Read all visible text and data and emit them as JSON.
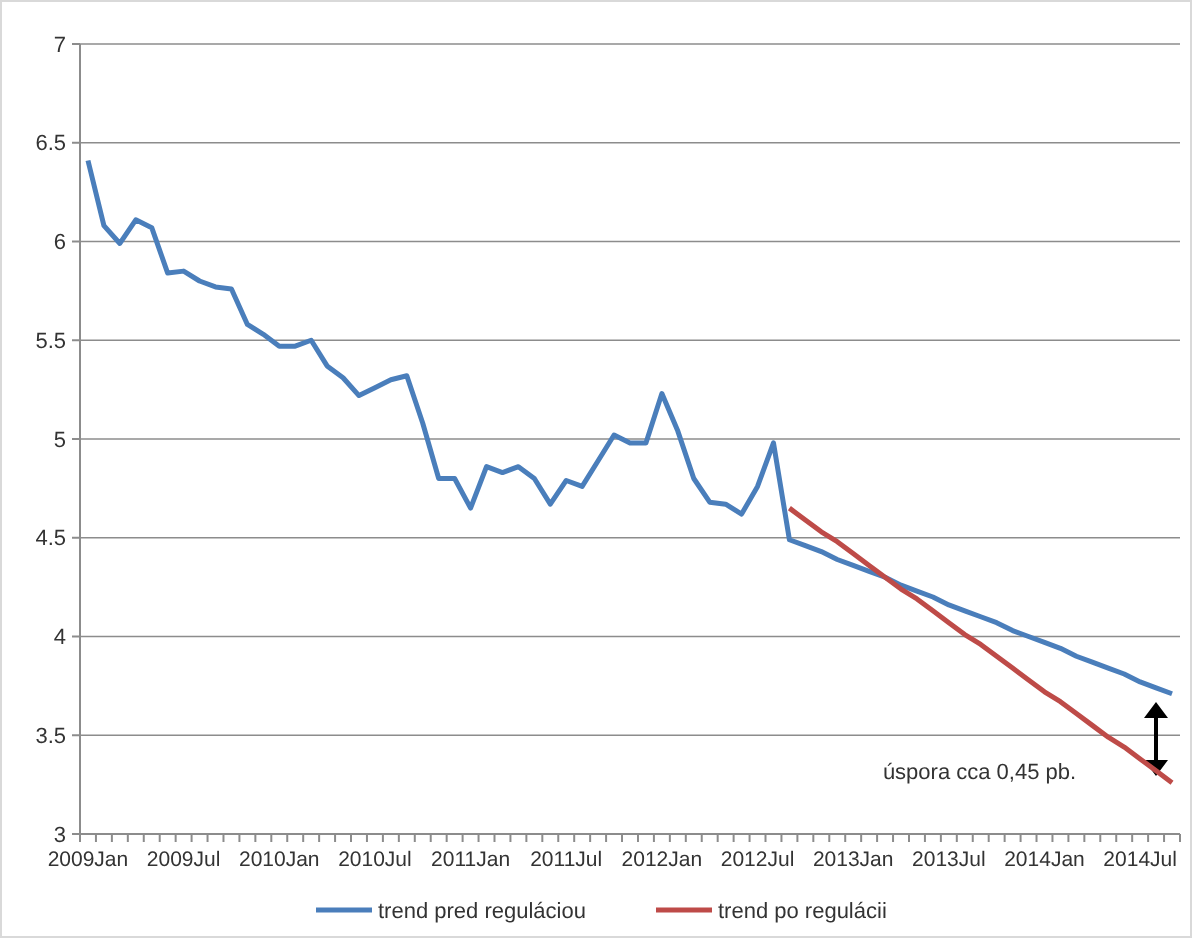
{
  "chart_data": {
    "type": "line",
    "categories": [
      "2009Jan",
      null,
      null,
      null,
      null,
      null,
      "2009Jul",
      null,
      null,
      null,
      null,
      null,
      "2010Jan",
      null,
      null,
      null,
      null,
      null,
      "2010Jul",
      null,
      null,
      null,
      null,
      null,
      "2011Jan",
      null,
      null,
      null,
      null,
      null,
      "2011Jul",
      null,
      null,
      null,
      null,
      null,
      "2012Jan",
      null,
      null,
      null,
      null,
      null,
      "2012Jul",
      null,
      null,
      null,
      null,
      null,
      "2013Jan",
      null,
      null,
      null,
      null,
      null,
      "2013Jul",
      null,
      null,
      null,
      null,
      null,
      "2014Jan",
      null,
      null,
      null,
      null,
      null,
      "2014Jul",
      null,
      null
    ],
    "series": [
      {
        "name": "trend pred reguláciou",
        "color": "#4a7ebb",
        "values": [
          6.41,
          6.08,
          5.99,
          6.11,
          6.07,
          5.84,
          5.85,
          5.8,
          5.77,
          5.76,
          5.58,
          5.53,
          5.47,
          5.47,
          5.5,
          5.37,
          5.31,
          5.22,
          5.26,
          5.3,
          5.32,
          5.08,
          4.8,
          4.8,
          4.65,
          4.86,
          4.83,
          4.86,
          4.8,
          4.67,
          4.79,
          4.76,
          4.89,
          5.02,
          4.98,
          4.98,
          5.23,
          5.04,
          4.8,
          4.68,
          4.67,
          4.62,
          4.76,
          4.98,
          4.49,
          4.46,
          4.43,
          4.39,
          4.36,
          4.33,
          4.3,
          4.26,
          4.23,
          4.2,
          4.16,
          4.13,
          4.1,
          4.07,
          4.03,
          4.0,
          3.97,
          3.94,
          3.9,
          3.87,
          3.84,
          3.81,
          3.77,
          3.74,
          3.71
        ]
      },
      {
        "name": "trend po regulácii",
        "color": "#be4b48",
        "values": [
          null,
          null,
          null,
          null,
          null,
          null,
          null,
          null,
          null,
          null,
          null,
          null,
          null,
          null,
          null,
          null,
          null,
          null,
          null,
          null,
          null,
          null,
          null,
          null,
          null,
          null,
          null,
          null,
          null,
          null,
          null,
          null,
          null,
          null,
          null,
          null,
          null,
          null,
          null,
          null,
          null,
          null,
          null,
          null,
          4.65,
          4.59,
          4.53,
          4.48,
          4.42,
          4.36,
          4.3,
          4.24,
          4.19,
          4.13,
          4.07,
          4.01,
          3.96,
          3.9,
          3.84,
          3.78,
          3.72,
          3.67,
          3.61,
          3.55,
          3.49,
          3.44,
          3.38,
          3.32,
          3.26
        ]
      }
    ],
    "ylim": [
      3,
      7
    ],
    "yticks": [
      3,
      3.5,
      4,
      4.5,
      5,
      5.5,
      6,
      6.5,
      7
    ],
    "grid": "y",
    "legend": "bottom",
    "marker": "none",
    "line_style": "solid",
    "annotations": [
      {
        "text": "úspora cca 0,45 pb.",
        "x": "2014Jul",
        "y": 3.32
      }
    ]
  }
}
